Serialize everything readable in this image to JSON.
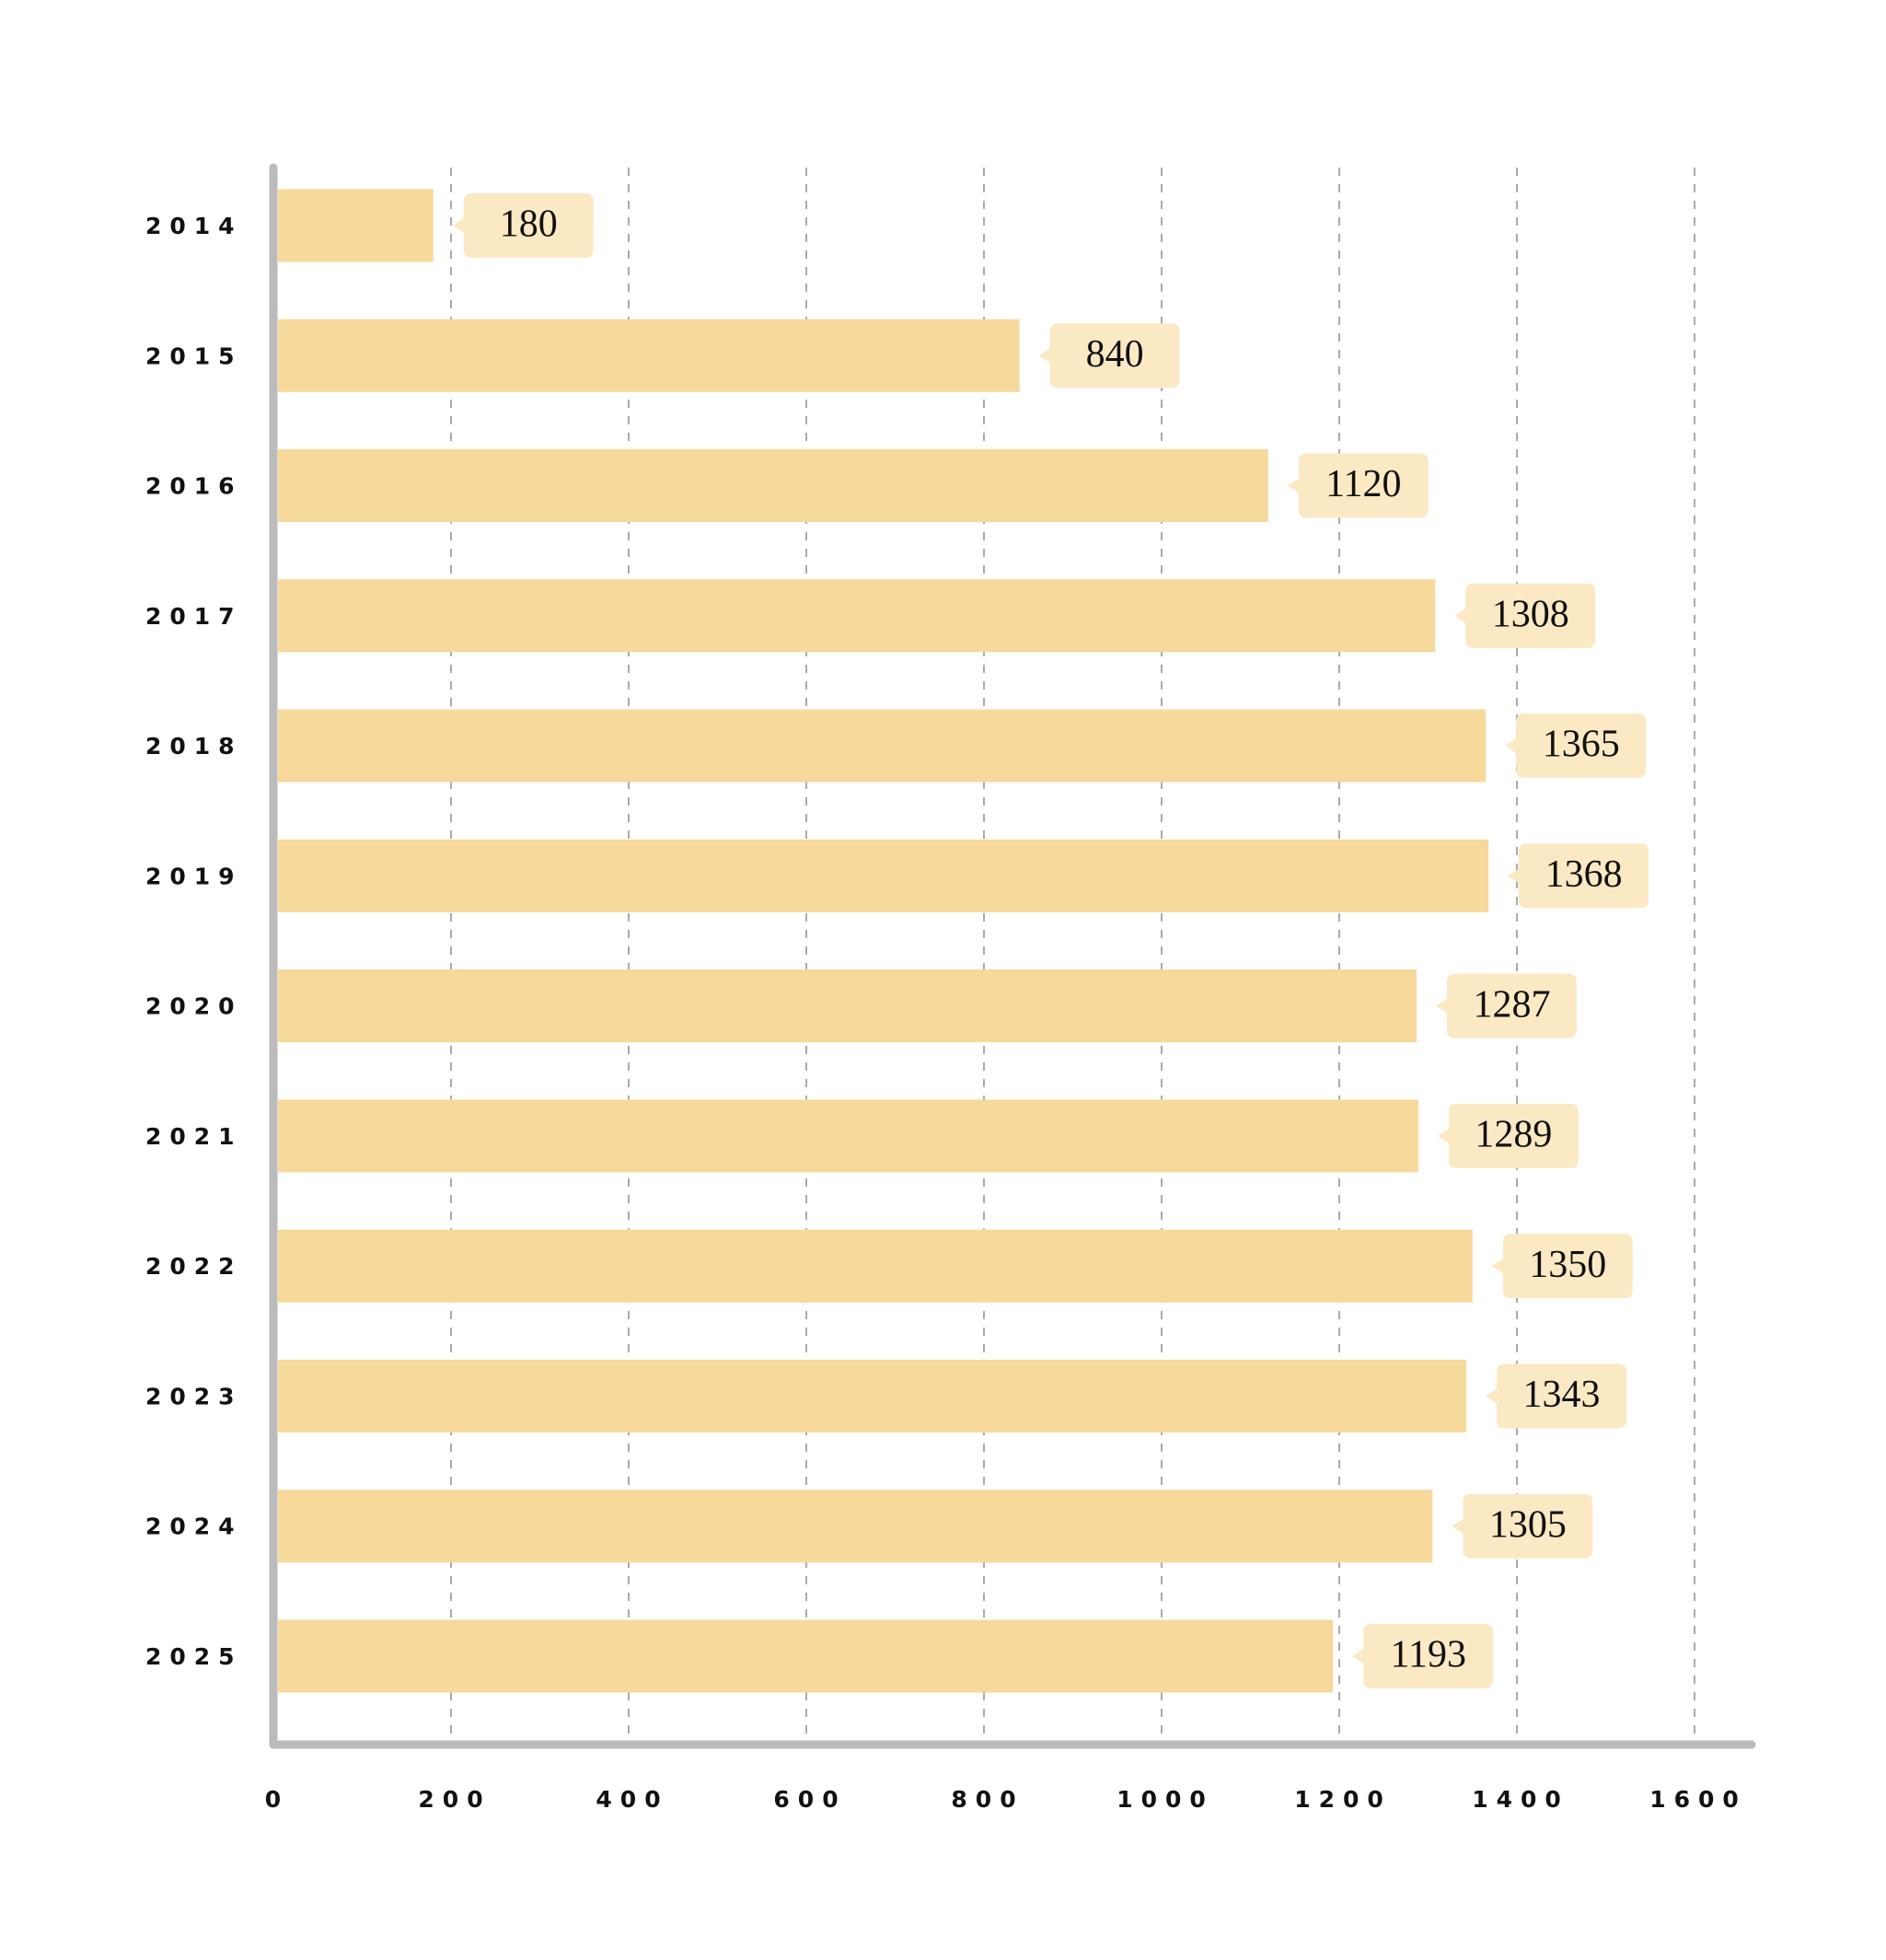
{
  "chart_data": {
    "type": "bar",
    "orientation": "horizontal",
    "categories": [
      "2014",
      "2015",
      "2016",
      "2017",
      "2018",
      "2019",
      "2020",
      "2021",
      "2022",
      "2023",
      "2024",
      "2025"
    ],
    "values": [
      180,
      840,
      1120,
      1308,
      1365,
      1368,
      1287,
      1289,
      1350,
      1343,
      1305,
      1193
    ],
    "color": "#f6d99b",
    "label_color": "#fbe9c4",
    "xlim": [
      0,
      1600
    ],
    "xticks": [
      0,
      200,
      400,
      600,
      800,
      1000,
      1200,
      1400,
      1600
    ],
    "grid": true
  }
}
